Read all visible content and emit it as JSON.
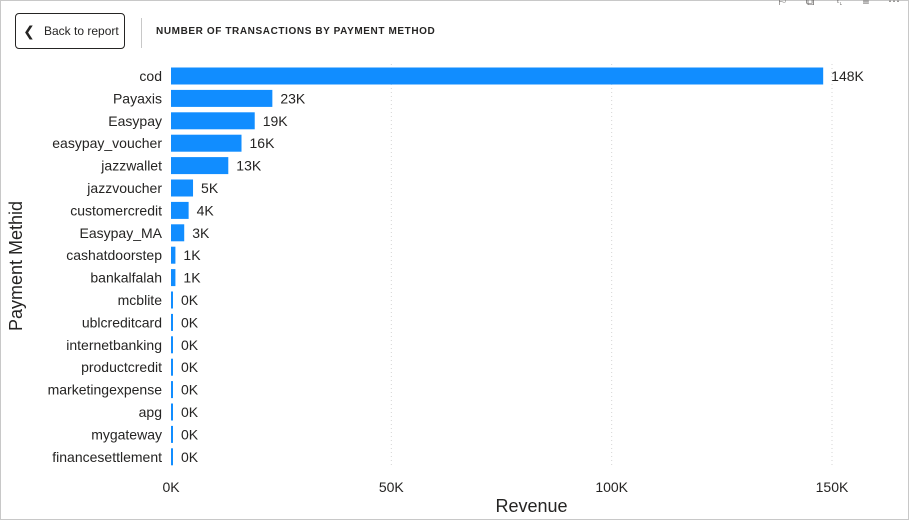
{
  "header": {
    "back_label": "Back to report",
    "back_icon": "chevron-left-icon",
    "title": "NUMBER OF TRANSACTIONS BY PAYMENT METHOD",
    "toolbar_icons": [
      "pin-icon",
      "copy-icon",
      "bell-icon",
      "filter-icon",
      "more-icon"
    ],
    "toolbar_glyphs": [
      "⚐",
      "⧉",
      "␇",
      "≡",
      "⋯"
    ]
  },
  "chart_data": {
    "type": "bar",
    "orientation": "horizontal",
    "bar_color": "#118DFF",
    "xlabel": "Revenue",
    "ylabel": "Payment Methid",
    "xlim": [
      0,
      150000
    ],
    "xticks": [
      0,
      50000,
      100000,
      150000
    ],
    "xtick_labels": [
      "0K",
      "50K",
      "100K",
      "150K"
    ],
    "grid": "vertical dotted",
    "categories": [
      "cod",
      "Payaxis",
      "Easypay",
      "easypay_voucher",
      "jazzwallet",
      "jazzvoucher",
      "customercredit",
      "Easypay_MA",
      "cashatdoorstep",
      "bankalfalah",
      "mcblite",
      "ublcreditcard",
      "internetbanking",
      "productcredit",
      "marketingexpense",
      "apg",
      "mygateway",
      "financesettlement"
    ],
    "values": [
      148000,
      23000,
      19000,
      16000,
      13000,
      5000,
      4000,
      3000,
      1000,
      1000,
      300,
      200,
      150,
      100,
      80,
      60,
      40,
      20
    ],
    "value_labels": [
      "148K",
      "23K",
      "19K",
      "16K",
      "13K",
      "5K",
      "4K",
      "3K",
      "1K",
      "1K",
      "0K",
      "0K",
      "0K",
      "0K",
      "0K",
      "0K",
      "0K",
      "0K"
    ]
  }
}
